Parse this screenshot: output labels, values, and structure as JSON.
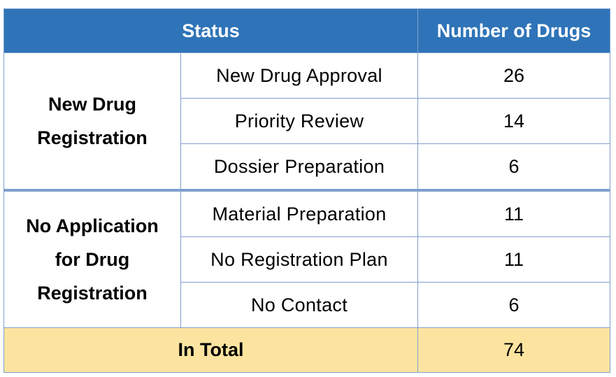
{
  "header": {
    "status": "Status",
    "number": "Number of Drugs"
  },
  "groups": [
    {
      "label_lines": [
        "New Drug",
        "Registration"
      ],
      "rows": [
        {
          "status": "New Drug Approval",
          "count": "26"
        },
        {
          "status": "Priority Review",
          "count": "14"
        },
        {
          "status": "Dossier Preparation",
          "count": "6"
        }
      ]
    },
    {
      "label_lines": [
        "No Application",
        "for Drug",
        "Registration"
      ],
      "rows": [
        {
          "status": "Material Preparation",
          "count": "11"
        },
        {
          "status": "No Registration Plan",
          "count": "11"
        },
        {
          "status": "No Contact",
          "count": "6"
        }
      ]
    }
  ],
  "total": {
    "label": "In Total",
    "count": "74"
  },
  "colors": {
    "header_bg": "#2f74b8",
    "total_bg": "#fce4a0",
    "border": "#7f9fce"
  }
}
